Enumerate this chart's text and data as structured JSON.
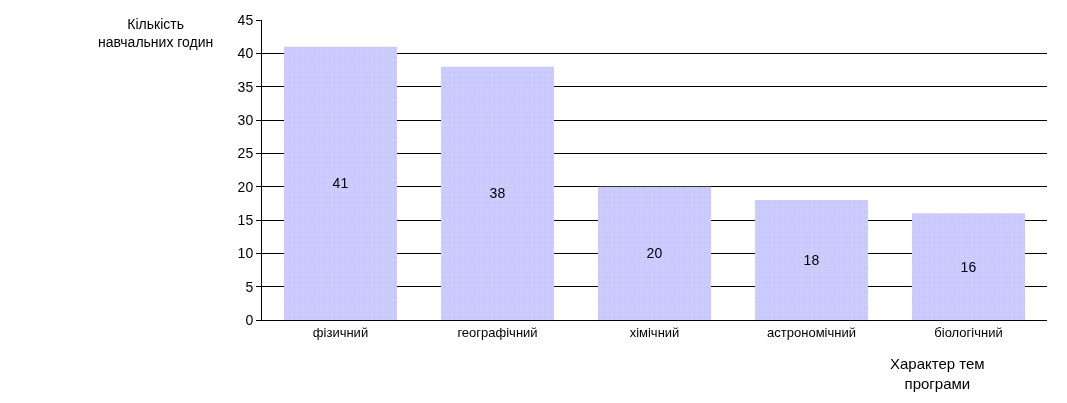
{
  "chart_data": {
    "type": "bar",
    "xlabel": "Характер тем програми",
    "ylabel": "Кількість навчальних годин",
    "categories": [
      "фізичний",
      "географічний",
      "хімічний",
      "астрономічний",
      "біологічний"
    ],
    "values": [
      41,
      38,
      20,
      18,
      16
    ],
    "color": "#ccccff",
    "ylim": [
      0,
      45
    ],
    "yticks": [
      0,
      5,
      10,
      15,
      20,
      25,
      30,
      35,
      40,
      45
    ],
    "grid": "y",
    "data_labels": true
  }
}
